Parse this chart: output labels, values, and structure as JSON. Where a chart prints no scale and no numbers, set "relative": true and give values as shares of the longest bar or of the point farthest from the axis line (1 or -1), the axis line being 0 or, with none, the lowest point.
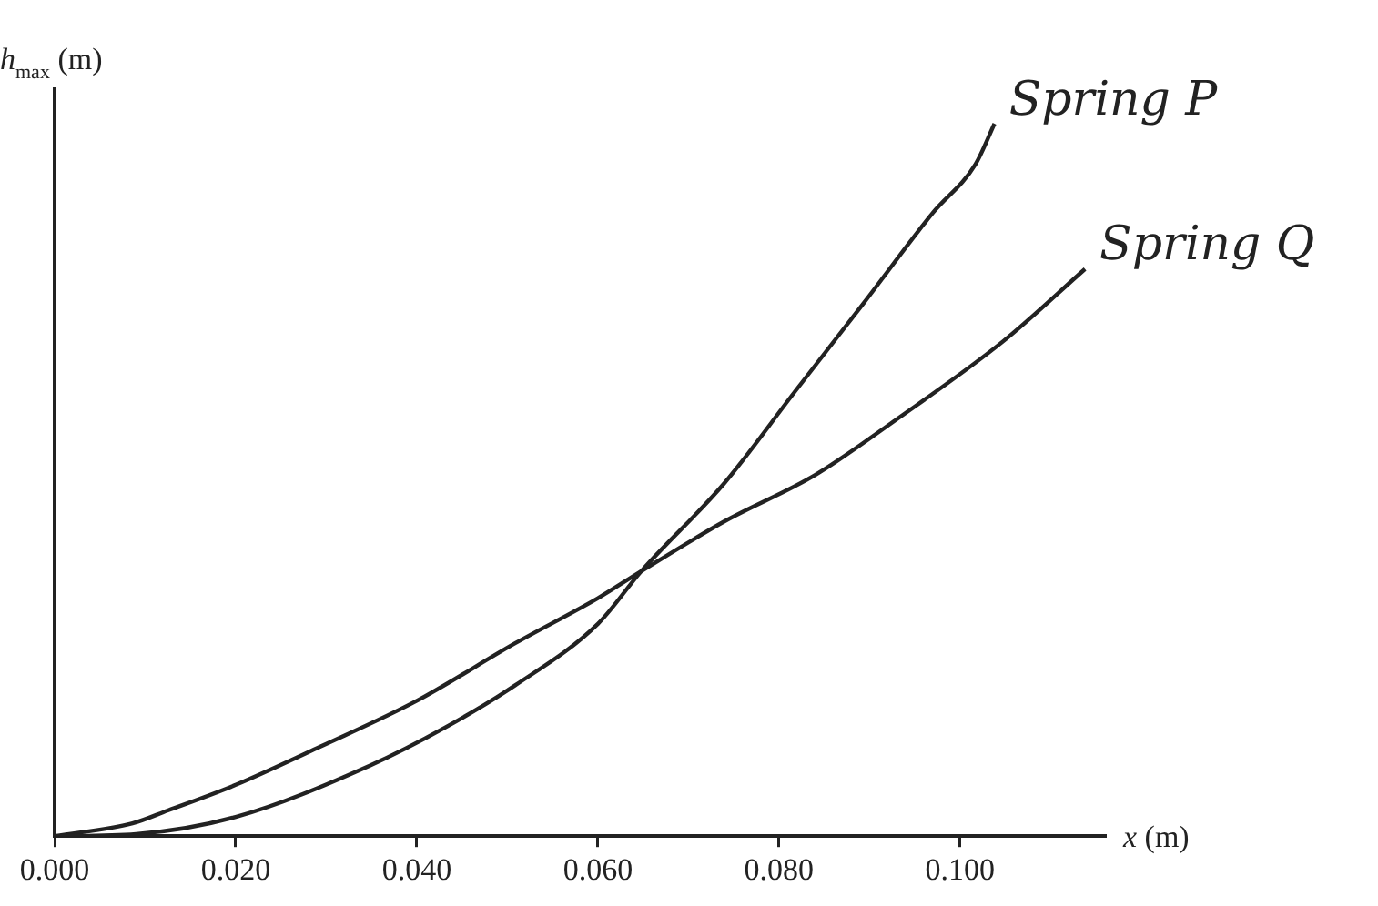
{
  "chart_data": {
    "type": "line",
    "xlabel": "x (m)",
    "ylabel": "h$_{max}$ (m)",
    "relative": true,
    "grid": false,
    "legend": false,
    "marker": "none",
    "line_style": "solid",
    "xlim": [
      0,
      0.116
    ],
    "xticks": [
      {
        "value": 0,
        "label": "0.000"
      },
      {
        "value": 0.02,
        "label": "0.020"
      },
      {
        "value": 0.04,
        "label": "0.040"
      },
      {
        "value": 0.06,
        "label": "0.060"
      },
      {
        "value": 0.08,
        "label": "0.080"
      },
      {
        "value": 0.1,
        "label": "0.100"
      }
    ],
    "series": [
      {
        "name": "Spring P",
        "color": "#222222",
        "x": [
          0,
          0.009,
          0.02,
          0.0348,
          0.0432,
          0.0509,
          0.06,
          0.0648,
          0.074,
          0.0817,
          0.0894,
          0.097,
          0.1017,
          0.1038
        ],
        "values": [
          0,
          0.003,
          0.027,
          0.099,
          0.153,
          0.212,
          0.298,
          0.372,
          0.496,
          0.623,
          0.749,
          0.875,
          0.943,
          1
        ]
      },
      {
        "name": "Spring Q",
        "color": "#222222",
        "x": [
          0,
          0.0086,
          0.0125,
          0.02,
          0.0294,
          0.04,
          0.0509,
          0.06,
          0.0648,
          0.074,
          0.084,
          0.0932,
          0.1048,
          0.1138
        ],
        "values": [
          0,
          0.018,
          0.036,
          0.072,
          0.126,
          0.19,
          0.271,
          0.334,
          0.372,
          0.442,
          0.507,
          0.587,
          0.695,
          0.796
        ]
      }
    ]
  }
}
